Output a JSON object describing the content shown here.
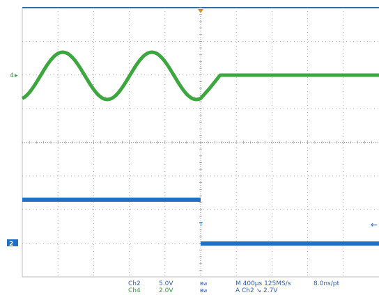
{
  "colors": {
    "ch2": "#1f6fc4",
    "ch4": "#3da63f",
    "trigger": "#e08a2a",
    "grid": "#9a9a9a",
    "frame": "#2c6aa8"
  },
  "markers": {
    "ch4_marker": "4",
    "ch2_marker": "2"
  },
  "readout": {
    "ch2": {
      "name": "Ch2",
      "scale": "5.0V",
      "bw": "Bw"
    },
    "ch4": {
      "name": "Ch4",
      "scale": "2.0V",
      "bw": "Bw"
    },
    "timebase": "M 400µs 125MS/s",
    "resolution": "8.0ns/pt",
    "trigger": "A  Ch2  ↘  2.7V"
  },
  "arrow_right": "←"
}
